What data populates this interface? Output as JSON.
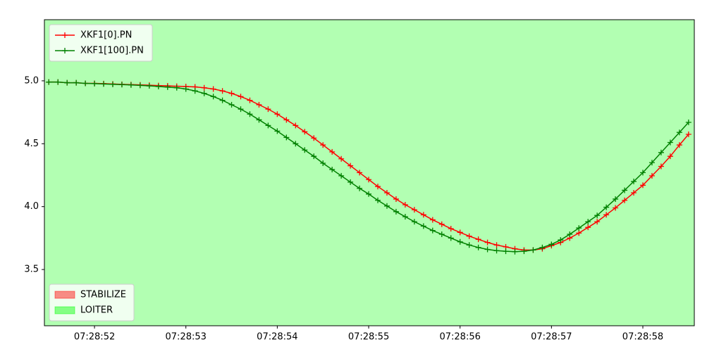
{
  "chart_data": {
    "type": "line",
    "x": [
      51.5,
      51.6,
      51.7,
      51.8,
      51.9,
      52.0,
      52.1,
      52.2,
      52.3,
      52.4,
      52.5,
      52.6,
      52.7,
      52.8,
      52.9,
      53.0,
      53.1,
      53.2,
      53.3,
      53.4,
      53.5,
      53.6,
      53.7,
      53.8,
      53.9,
      54.0,
      54.1,
      54.2,
      54.3,
      54.4,
      54.5,
      54.6,
      54.7,
      54.8,
      54.9,
      55.0,
      55.1,
      55.2,
      55.3,
      55.4,
      55.5,
      55.6,
      55.7,
      55.8,
      55.9,
      56.0,
      56.1,
      56.2,
      56.3,
      56.4,
      56.5,
      56.6,
      56.7,
      56.8,
      56.9,
      57.0,
      57.1,
      57.2,
      57.3,
      57.4,
      57.5,
      57.6,
      57.7,
      57.8,
      57.9,
      58.0,
      58.1,
      58.2,
      58.3,
      58.4,
      58.5
    ],
    "series": [
      {
        "name": "XKF1[0].PN",
        "color": "#ff0000",
        "values": [
          4.99,
          4.99,
          4.985,
          4.985,
          4.98,
          4.98,
          4.978,
          4.975,
          4.972,
          4.97,
          4.968,
          4.965,
          4.962,
          4.96,
          4.957,
          4.955,
          4.952,
          4.945,
          4.935,
          4.92,
          4.9,
          4.875,
          4.845,
          4.81,
          4.775,
          4.735,
          4.69,
          4.645,
          4.595,
          4.545,
          4.49,
          4.435,
          4.38,
          4.325,
          4.27,
          4.215,
          4.16,
          4.11,
          4.06,
          4.015,
          3.975,
          3.935,
          3.895,
          3.86,
          3.825,
          3.795,
          3.765,
          3.74,
          3.715,
          3.695,
          3.68,
          3.665,
          3.655,
          3.655,
          3.665,
          3.69,
          3.715,
          3.75,
          3.79,
          3.835,
          3.88,
          3.935,
          3.99,
          4.05,
          4.11,
          4.17,
          4.245,
          4.32,
          4.4,
          4.49,
          4.575
        ]
      },
      {
        "name": "XKF1[100].PN",
        "color": "#008000",
        "values": [
          4.99,
          4.99,
          4.985,
          4.985,
          4.98,
          4.978,
          4.975,
          4.972,
          4.97,
          4.967,
          4.964,
          4.96,
          4.955,
          4.95,
          4.945,
          4.935,
          4.92,
          4.9,
          4.875,
          4.845,
          4.81,
          4.775,
          4.735,
          4.69,
          4.645,
          4.6,
          4.55,
          4.5,
          4.45,
          4.4,
          4.345,
          4.295,
          4.245,
          4.195,
          4.145,
          4.1,
          4.05,
          4.005,
          3.96,
          3.92,
          3.88,
          3.845,
          3.81,
          3.78,
          3.75,
          3.72,
          3.695,
          3.675,
          3.66,
          3.65,
          3.645,
          3.642,
          3.645,
          3.655,
          3.675,
          3.7,
          3.735,
          3.78,
          3.83,
          3.88,
          3.93,
          3.995,
          4.06,
          4.13,
          4.2,
          4.27,
          4.35,
          4.43,
          4.51,
          4.59,
          4.67
        ]
      }
    ],
    "modes": [
      {
        "name": "STABILIZE",
        "color": "#ff0000",
        "alpha": 0.45
      },
      {
        "name": "LOITER",
        "color": "#00ff00",
        "alpha": 0.3,
        "span": [
          51.452,
          58.563
        ]
      }
    ],
    "xlim": [
      51.452,
      58.563
    ],
    "xticks": [
      {
        "value": 52,
        "label": "07:28:52"
      },
      {
        "value": 53,
        "label": "07:28:53"
      },
      {
        "value": 54,
        "label": "07:28:54"
      },
      {
        "value": 55,
        "label": "07:28:55"
      },
      {
        "value": 56,
        "label": "07:28:56"
      },
      {
        "value": 57,
        "label": "07:28:57"
      },
      {
        "value": 58,
        "label": "07:28:58"
      }
    ],
    "ylim": [
      3.053,
      5.486
    ],
    "yticks": [
      3.5,
      {
        "value": 4,
        "label": "4.0"
      },
      4.5,
      {
        "value": 5,
        "label": "5.0"
      }
    ],
    "legend": "upper left",
    "mode_legend": "lower left"
  }
}
